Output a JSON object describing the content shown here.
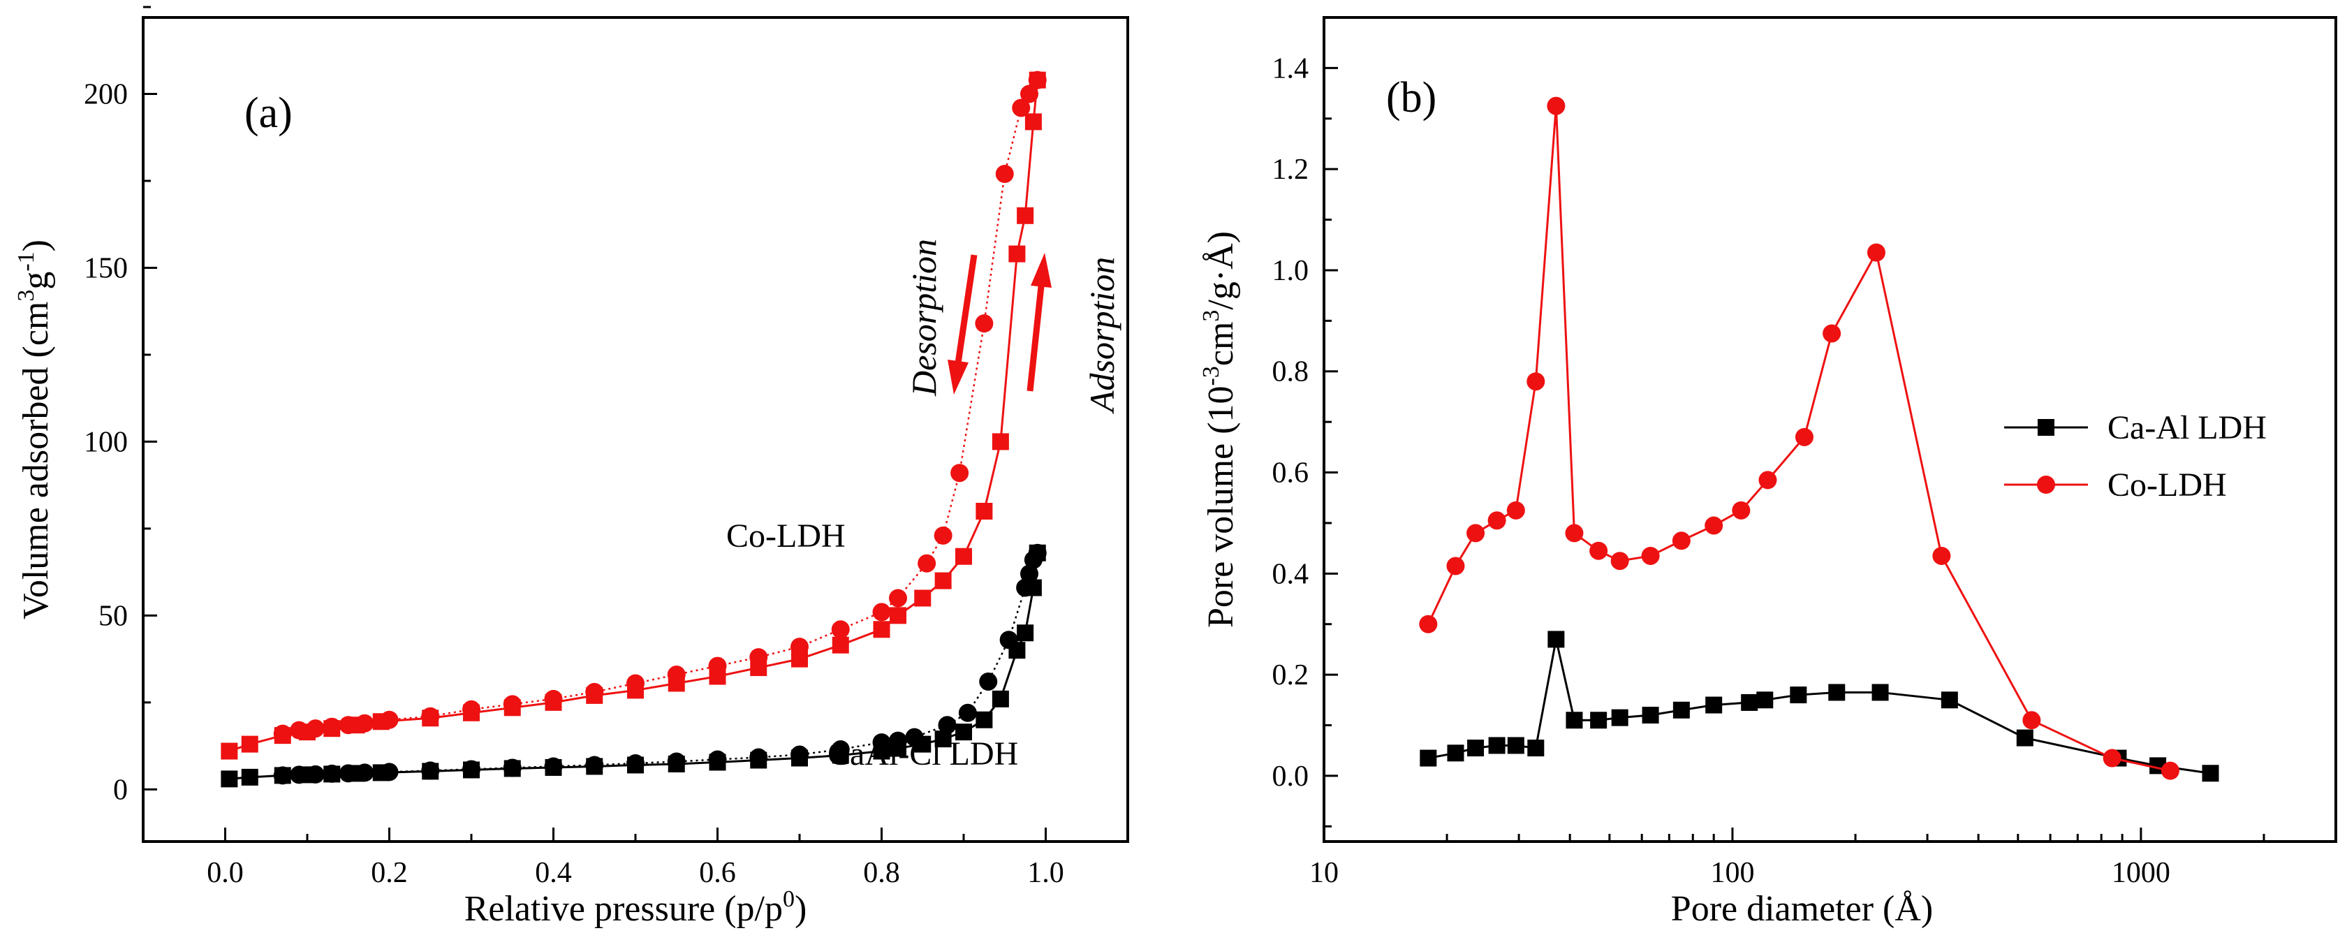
{
  "chart_data": [
    {
      "type": "scatter",
      "panel_label": "(a)",
      "xlabel": "Relative pressure (p/p",
      "xlabel_sup": "0",
      "xlabel_tail": ")",
      "ylabel": "Volume adsorbed (cm",
      "ylabel_sup1": "3",
      "ylabel_mid": "g",
      "ylabel_sup2": "-1",
      "ylabel_tail": ")",
      "xlim": [
        -0.1,
        1.1
      ],
      "ylim": [
        -15,
        222
      ],
      "xticks": [
        0.0,
        0.2,
        0.4,
        0.6,
        0.8,
        1.0
      ],
      "xtick_labels": [
        "0.0",
        "0.2",
        "0.4",
        "0.6",
        "0.8",
        "1.0"
      ],
      "yticks": [
        0,
        50,
        100,
        150,
        200
      ],
      "ytick_labels": [
        "0",
        "50",
        "100",
        "150",
        "200"
      ],
      "annotations": {
        "co_ldh": "Co-LDH",
        "caal": "CaAl-Cl LDH",
        "desorption": "Desorption",
        "adsorption": "Adsorption"
      },
      "series": [
        {
          "name": "Co-LDH adsorption",
          "marker": "square",
          "color": "#ee1111",
          "line": "solid",
          "x": [
            0.005,
            0.03,
            0.07,
            0.1,
            0.13,
            0.16,
            0.19,
            0.25,
            0.3,
            0.35,
            0.4,
            0.45,
            0.5,
            0.55,
            0.6,
            0.65,
            0.7,
            0.75,
            0.8,
            0.82,
            0.85,
            0.875,
            0.9,
            0.925,
            0.945,
            0.965,
            0.975,
            0.985,
            0.99
          ],
          "y": [
            11,
            13,
            15.5,
            16.5,
            17.5,
            18.5,
            19.5,
            20.5,
            22,
            23.5,
            25,
            27,
            28.5,
            30.5,
            32.5,
            35,
            37.5,
            41.5,
            46,
            50,
            55,
            60,
            67,
            80,
            100,
            154,
            165,
            192,
            204
          ]
        },
        {
          "name": "Co-LDH desorption",
          "marker": "circle",
          "color": "#ee1111",
          "line": "dotted",
          "x": [
            0.99,
            0.98,
            0.97,
            0.95,
            0.925,
            0.895,
            0.875,
            0.855,
            0.82,
            0.8,
            0.75,
            0.7,
            0.65,
            0.6,
            0.55,
            0.5,
            0.45,
            0.4,
            0.35,
            0.3,
            0.25,
            0.2,
            0.17,
            0.15,
            0.13,
            0.11,
            0.09,
            0.07
          ],
          "y": [
            204,
            200,
            196,
            177,
            134,
            91,
            73,
            65,
            55,
            51,
            46,
            41,
            38,
            35.5,
            33,
            30.5,
            28,
            26,
            24.5,
            23,
            21,
            20,
            19,
            18.5,
            18,
            17.5,
            17,
            16
          ]
        },
        {
          "name": "CaAl-Cl LDH adsorption",
          "marker": "square",
          "color": "#000000",
          "line": "solid",
          "x": [
            0.005,
            0.03,
            0.07,
            0.1,
            0.13,
            0.16,
            0.19,
            0.25,
            0.3,
            0.35,
            0.4,
            0.45,
            0.5,
            0.55,
            0.6,
            0.65,
            0.7,
            0.75,
            0.8,
            0.82,
            0.85,
            0.875,
            0.9,
            0.925,
            0.945,
            0.965,
            0.975,
            0.985,
            0.99
          ],
          "y": [
            3,
            3.5,
            4,
            4.2,
            4.4,
            4.6,
            4.8,
            5.2,
            5.6,
            6,
            6.3,
            6.6,
            7,
            7.3,
            7.8,
            8.4,
            9,
            9.8,
            11,
            11.8,
            13,
            14.5,
            16.5,
            20,
            26,
            40,
            45,
            58,
            68
          ]
        },
        {
          "name": "CaAl-Cl LDH desorption",
          "marker": "circle",
          "color": "#000000",
          "line": "dotted",
          "x": [
            0.99,
            0.985,
            0.98,
            0.975,
            0.955,
            0.93,
            0.905,
            0.88,
            0.84,
            0.82,
            0.8,
            0.75,
            0.7,
            0.65,
            0.6,
            0.55,
            0.5,
            0.45,
            0.4,
            0.35,
            0.3,
            0.25,
            0.2,
            0.17,
            0.15,
            0.13,
            0.11,
            0.09,
            0.07
          ],
          "y": [
            68,
            66,
            62,
            58,
            43,
            31,
            22,
            18.5,
            15,
            14,
            13.5,
            11.5,
            10,
            9.2,
            8.6,
            8,
            7.5,
            7,
            6.6,
            6.2,
            5.8,
            5.4,
            5,
            4.8,
            4.6,
            4.5,
            4.3,
            4.2,
            4
          ]
        }
      ]
    },
    {
      "type": "line",
      "panel_label": "(b)",
      "xlabel": "Pore diameter (Å)",
      "ylabel": "Pore volume (10",
      "ylabel_sup1": "-3",
      "ylabel_mid": "cm",
      "ylabel_sup2": "3",
      "ylabel_tail": "/g·Å)",
      "xscale": "log",
      "xlim": [
        10,
        3000
      ],
      "ylim": [
        -0.13,
        1.5
      ],
      "xticks": [
        10,
        100,
        1000
      ],
      "xtick_labels": [
        "10",
        "100",
        "1000"
      ],
      "yticks": [
        0.0,
        0.2,
        0.4,
        0.6,
        0.8,
        1.0,
        1.2,
        1.4
      ],
      "ytick_labels": [
        "0.0",
        "0.2",
        "0.4",
        "0.6",
        "0.8",
        "1.0",
        "1.2",
        "1.4"
      ],
      "legend": {
        "position": "right",
        "entries": [
          "Ca-Al LDH",
          "Co-LDH"
        ]
      },
      "series": [
        {
          "name": "Ca-Al LDH",
          "marker": "square",
          "color": "#000000",
          "x": [
            18,
            21,
            23.5,
            26.5,
            29.5,
            33,
            37,
            41,
            47,
            53,
            63,
            75,
            90,
            110,
            120,
            145,
            180,
            230,
            340,
            520,
            880,
            1100,
            1480
          ],
          "y": [
            0.035,
            0.045,
            0.055,
            0.06,
            0.06,
            0.055,
            0.27,
            0.11,
            0.11,
            0.115,
            0.12,
            0.13,
            0.14,
            0.145,
            0.15,
            0.16,
            0.165,
            0.165,
            0.15,
            0.075,
            0.035,
            0.02,
            0.005
          ]
        },
        {
          "name": "Co-LDH",
          "marker": "circle",
          "color": "#ee1111",
          "x": [
            18,
            21,
            23.5,
            26.5,
            29.5,
            33,
            37,
            41,
            47,
            53,
            63,
            75,
            90,
            105,
            122,
            150,
            175,
            225,
            325,
            540,
            850,
            1180
          ],
          "y": [
            0.3,
            0.415,
            0.48,
            0.505,
            0.525,
            0.78,
            1.325,
            0.48,
            0.445,
            0.425,
            0.435,
            0.465,
            0.495,
            0.525,
            0.585,
            0.67,
            0.875,
            1.035,
            0.435,
            0.11,
            0.035,
            0.01
          ]
        }
      ]
    }
  ]
}
